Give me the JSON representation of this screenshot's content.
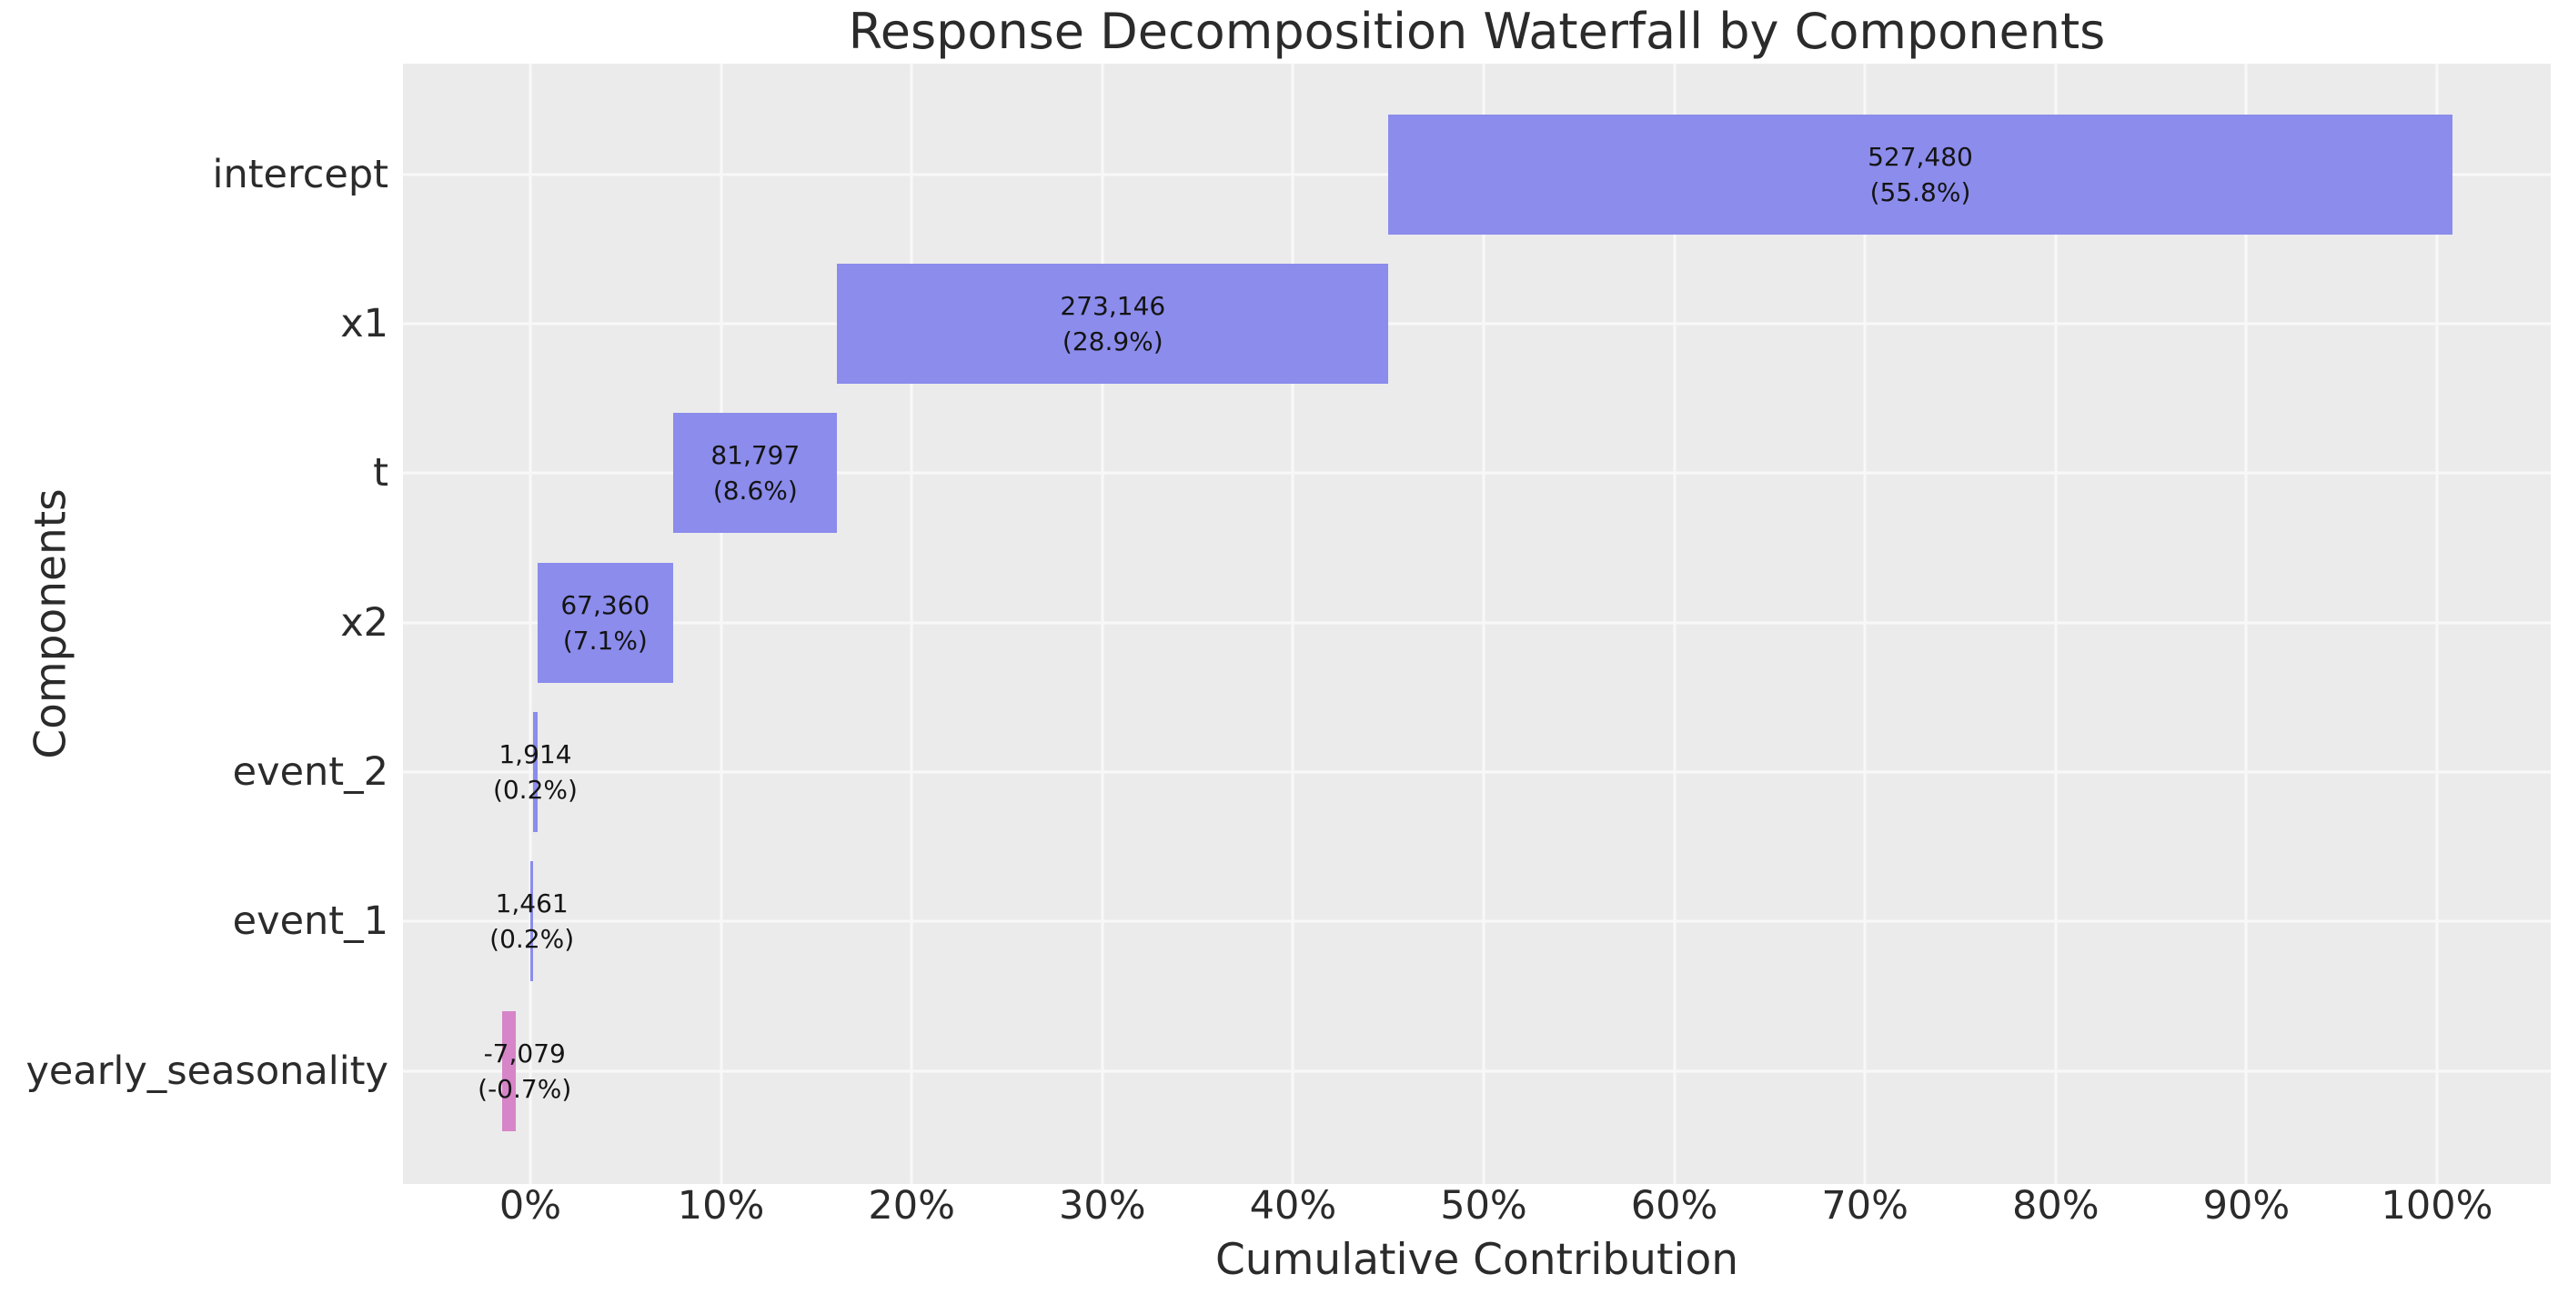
{
  "title": "Response Decomposition Waterfall by Components",
  "x_axis": {
    "label": "Cumulative Contribution",
    "ticks": [
      "0%",
      "10%",
      "20%",
      "30%",
      "40%",
      "50%",
      "60%",
      "70%",
      "80%",
      "90%",
      "100%"
    ],
    "tick_values": [
      0,
      10,
      20,
      30,
      40,
      50,
      60,
      70,
      80,
      90,
      100
    ]
  },
  "y_axis": {
    "label": "Components",
    "categories": [
      "intercept",
      "x1",
      "t",
      "x2",
      "event_2",
      "event_1",
      "yearly_seasonality"
    ]
  },
  "chart_data": {
    "type": "bar",
    "subtype": "horizontal-waterfall",
    "title": "Response Decomposition Waterfall by Components",
    "xlabel": "Cumulative Contribution",
    "ylabel": "Components",
    "xlim": [
      -6.7,
      106.0
    ],
    "grid": true,
    "legend": false,
    "plot_bg": "#ebebeb",
    "grid_color": "#f8f8f8",
    "colors": {
      "positive": "#8b8cec",
      "negative": "#d685c8"
    },
    "categories": [
      "intercept",
      "x1",
      "t",
      "x2",
      "event_2",
      "event_1",
      "yearly_seasonality"
    ],
    "values": [
      527480,
      273146,
      81797,
      67360,
      1914,
      1461,
      -7079
    ],
    "percentages": [
      55.8,
      28.9,
      8.6,
      7.1,
      0.2,
      0.2,
      -0.7
    ],
    "bars": [
      {
        "name": "intercept",
        "value": 527480,
        "value_label": "527,480",
        "pct_label": "(55.8%)",
        "start_pct": 45.0,
        "end_pct": 100.8,
        "sign": "positive",
        "label_x": 72.9
      },
      {
        "name": "x1",
        "value": 273146,
        "value_label": "273,146",
        "pct_label": "(28.9%)",
        "start_pct": 16.1,
        "end_pct": 45.0,
        "sign": "positive",
        "label_x": 30.55
      },
      {
        "name": "t",
        "value": 81797,
        "value_label": "81,797",
        "pct_label": "(8.6%)",
        "start_pct": 7.5,
        "end_pct": 16.1,
        "sign": "positive",
        "label_x": 11.8
      },
      {
        "name": "x2",
        "value": 67360,
        "value_label": "67,360",
        "pct_label": "(7.1%)",
        "start_pct": 0.36,
        "end_pct": 7.5,
        "sign": "positive",
        "label_x": 3.93
      },
      {
        "name": "event_2",
        "value": 1914,
        "value_label": "1,914",
        "pct_label": "(0.2%)",
        "start_pct": 0.15,
        "end_pct": 0.36,
        "sign": "positive",
        "label_x": 0.26
      },
      {
        "name": "event_1",
        "value": 1461,
        "value_label": "1,461",
        "pct_label": "(0.2%)",
        "start_pct": 0.0,
        "end_pct": 0.15,
        "sign": "positive",
        "label_x": 0.08
      },
      {
        "name": "yearly_seasonality",
        "value": -7079,
        "value_label": "-7,079",
        "pct_label": "(-0.7%)",
        "start_pct": -1.5,
        "end_pct": -0.75,
        "sign": "negative",
        "label_x": -0.3
      }
    ]
  }
}
